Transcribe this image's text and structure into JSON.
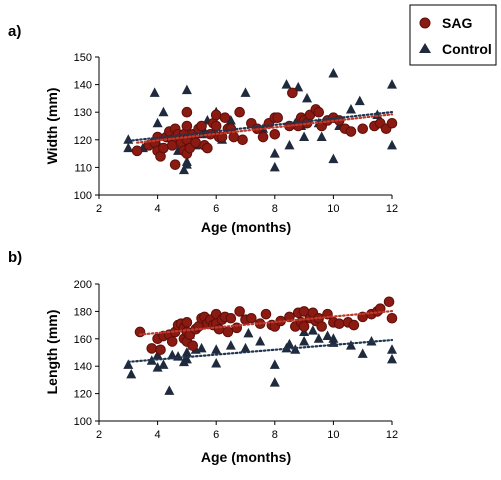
{
  "legend": {
    "items": [
      {
        "label": "SAG",
        "marker": "circle",
        "color": "#8b1a12"
      },
      {
        "label": "Control",
        "marker": "triangle",
        "color": "#1f2a3c"
      }
    ]
  },
  "colors": {
    "sag": "#8b1a12",
    "sag_stroke": "#5e0f0a",
    "control": "#1f2a3c",
    "sag_trend": "#c0392b",
    "control_trend": "#1f3550"
  },
  "chart_data": [
    {
      "panel_label": "a)",
      "type": "scatter",
      "xlabel": "Age (months)",
      "ylabel": "Width (mm)",
      "xlim": [
        2,
        12
      ],
      "ylim": [
        100,
        150
      ],
      "xticks": [
        2,
        4,
        6,
        8,
        10,
        12
      ],
      "yticks": [
        100,
        110,
        120,
        130,
        140,
        150
      ],
      "trendline": "dotted linear fit per series",
      "series": [
        {
          "name": "SAG",
          "marker": "circle",
          "points": [
            [
              3.3,
              116
            ],
            [
              3.7,
              118
            ],
            [
              3.9,
              119
            ],
            [
              4.0,
              121
            ],
            [
              4.0,
              116
            ],
            [
              4.1,
              114
            ],
            [
              4.2,
              117
            ],
            [
              4.3,
              121
            ],
            [
              4.4,
              123
            ],
            [
              4.5,
              120
            ],
            [
              4.5,
              118
            ],
            [
              4.6,
              124
            ],
            [
              4.6,
              111
            ],
            [
              4.7,
              122
            ],
            [
              4.8,
              119
            ],
            [
              4.9,
              122
            ],
            [
              4.9,
              116
            ],
            [
              5.0,
              125
            ],
            [
              5.0,
              120
            ],
            [
              5.0,
              130
            ],
            [
              5.0,
              115
            ],
            [
              5.1,
              117
            ],
            [
              5.2,
              122
            ],
            [
              5.3,
              119
            ],
            [
              5.4,
              124
            ],
            [
              5.5,
              125
            ],
            [
              5.6,
              118
            ],
            [
              5.7,
              117
            ],
            [
              5.8,
              122
            ],
            [
              5.9,
              126
            ],
            [
              6.0,
              129
            ],
            [
              6.0,
              125
            ],
            [
              6.1,
              121
            ],
            [
              6.2,
              121
            ],
            [
              6.3,
              128
            ],
            [
              6.4,
              124
            ],
            [
              6.5,
              124
            ],
            [
              6.6,
              121
            ],
            [
              6.8,
              130
            ],
            [
              6.9,
              120
            ],
            [
              7.2,
              126
            ],
            [
              7.4,
              124
            ],
            [
              7.6,
              121
            ],
            [
              7.8,
              126
            ],
            [
              8.0,
              128
            ],
            [
              8.0,
              122
            ],
            [
              8.1,
              128
            ],
            [
              8.5,
              125
            ],
            [
              8.6,
              137
            ],
            [
              8.8,
              125
            ],
            [
              8.9,
              128
            ],
            [
              9.0,
              127
            ],
            [
              9.1,
              126
            ],
            [
              9.2,
              129
            ],
            [
              9.4,
              131
            ],
            [
              9.5,
              130
            ],
            [
              9.6,
              125
            ],
            [
              9.8,
              127
            ],
            [
              10.0,
              128
            ],
            [
              10.2,
              127
            ],
            [
              10.4,
              124
            ],
            [
              10.6,
              123
            ],
            [
              11.0,
              124
            ],
            [
              11.4,
              125
            ],
            [
              11.6,
              126
            ],
            [
              11.8,
              124
            ],
            [
              12.0,
              126
            ]
          ]
        },
        {
          "name": "Control",
          "marker": "triangle",
          "points": [
            [
              3.0,
              120
            ],
            [
              3.0,
              117
            ],
            [
              3.5,
              117
            ],
            [
              3.8,
              119
            ],
            [
              3.9,
              137
            ],
            [
              4.0,
              126
            ],
            [
              4.0,
              119
            ],
            [
              4.2,
              130
            ],
            [
              4.5,
              122
            ],
            [
              4.6,
              120
            ],
            [
              4.7,
              116
            ],
            [
              4.9,
              109
            ],
            [
              5.0,
              138
            ],
            [
              5.0,
              112
            ],
            [
              5.0,
              111
            ],
            [
              5.0,
              118
            ],
            [
              5.0,
              120
            ],
            [
              5.2,
              121
            ],
            [
              5.3,
              118
            ],
            [
              5.5,
              122
            ],
            [
              5.6,
              123
            ],
            [
              5.7,
              127
            ],
            [
              5.9,
              123
            ],
            [
              6.0,
              130
            ],
            [
              6.2,
              120
            ],
            [
              6.5,
              127
            ],
            [
              7.0,
              137
            ],
            [
              7.6,
              124
            ],
            [
              8.0,
              115
            ],
            [
              8.0,
              110
            ],
            [
              8.4,
              140
            ],
            [
              8.5,
              118
            ],
            [
              8.7,
              126
            ],
            [
              8.8,
              139
            ],
            [
              8.9,
              125
            ],
            [
              9.0,
              121
            ],
            [
              9.1,
              135
            ],
            [
              9.5,
              126
            ],
            [
              9.6,
              121
            ],
            [
              10.0,
              144
            ],
            [
              10.0,
              113
            ],
            [
              10.2,
              125
            ],
            [
              10.6,
              131
            ],
            [
              10.9,
              134
            ],
            [
              11.5,
              129
            ],
            [
              12.0,
              140
            ],
            [
              12.0,
              118
            ]
          ]
        }
      ]
    },
    {
      "panel_label": "b)",
      "type": "scatter",
      "xlabel": "Age (months)",
      "ylabel": "Length (mm)",
      "xlim": [
        2,
        12
      ],
      "ylim": [
        100,
        200
      ],
      "xticks": [
        2,
        4,
        6,
        8,
        10,
        12
      ],
      "yticks": [
        100,
        120,
        140,
        160,
        180,
        200
      ],
      "trendline": "dotted linear fit per series",
      "series": [
        {
          "name": "SAG",
          "marker": "circle",
          "points": [
            [
              3.4,
              165
            ],
            [
              3.8,
              153
            ],
            [
              4.0,
              160
            ],
            [
              4.1,
              152
            ],
            [
              4.2,
              162
            ],
            [
              4.4,
              163
            ],
            [
              4.5,
              158
            ],
            [
              4.6,
              165
            ],
            [
              4.7,
              170
            ],
            [
              4.8,
              171
            ],
            [
              4.9,
              168
            ],
            [
              4.9,
              160
            ],
            [
              5.0,
              172
            ],
            [
              5.0,
              165
            ],
            [
              5.0,
              158
            ],
            [
              5.1,
              163
            ],
            [
              5.2,
              155
            ],
            [
              5.3,
              167
            ],
            [
              5.4,
              169
            ],
            [
              5.5,
              175
            ],
            [
              5.6,
              176
            ],
            [
              5.7,
              171
            ],
            [
              5.8,
              174
            ],
            [
              5.9,
              170
            ],
            [
              6.0,
              178
            ],
            [
              6.0,
              171
            ],
            [
              6.1,
              167
            ],
            [
              6.2,
              174
            ],
            [
              6.3,
              176
            ],
            [
              6.4,
              165
            ],
            [
              6.5,
              175
            ],
            [
              6.7,
              168
            ],
            [
              6.8,
              180
            ],
            [
              7.0,
              174
            ],
            [
              7.2,
              175
            ],
            [
              7.5,
              171
            ],
            [
              7.7,
              178
            ],
            [
              7.9,
              170
            ],
            [
              8.0,
              169
            ],
            [
              8.2,
              173
            ],
            [
              8.5,
              176
            ],
            [
              8.7,
              169
            ],
            [
              8.8,
              179
            ],
            [
              8.9,
              172
            ],
            [
              9.0,
              180
            ],
            [
              9.0,
              169
            ],
            [
              9.2,
              175
            ],
            [
              9.3,
              179
            ],
            [
              9.4,
              173
            ],
            [
              9.5,
              175
            ],
            [
              9.6,
              169
            ],
            [
              9.8,
              178
            ],
            [
              10.0,
              172
            ],
            [
              10.2,
              171
            ],
            [
              10.5,
              172
            ],
            [
              10.7,
              170
            ],
            [
              11.0,
              176
            ],
            [
              11.3,
              178
            ],
            [
              11.5,
              180
            ],
            [
              11.6,
              182
            ],
            [
              11.9,
              187
            ],
            [
              12.0,
              175
            ]
          ]
        },
        {
          "name": "Control",
          "marker": "triangle",
          "points": [
            [
              3.0,
              141
            ],
            [
              3.1,
              134
            ],
            [
              3.8,
              144
            ],
            [
              4.0,
              148
            ],
            [
              4.0,
              139
            ],
            [
              4.2,
              141
            ],
            [
              4.4,
              122
            ],
            [
              4.5,
              148
            ],
            [
              4.7,
              147
            ],
            [
              4.9,
              143
            ],
            [
              5.0,
              150
            ],
            [
              5.0,
              145
            ],
            [
              5.1,
              163
            ],
            [
              5.2,
              155
            ],
            [
              5.3,
              152
            ],
            [
              5.5,
              153
            ],
            [
              6.0,
              152
            ],
            [
              6.0,
              142
            ],
            [
              6.5,
              155
            ],
            [
              7.0,
              153
            ],
            [
              7.1,
              164
            ],
            [
              7.5,
              158
            ],
            [
              8.0,
              141
            ],
            [
              8.0,
              128
            ],
            [
              8.4,
              153
            ],
            [
              8.5,
              156
            ],
            [
              8.7,
              152
            ],
            [
              9.0,
              165
            ],
            [
              9.0,
              158
            ],
            [
              9.3,
              166
            ],
            [
              9.5,
              160
            ],
            [
              9.8,
              162
            ],
            [
              10.0,
              160
            ],
            [
              10.0,
              157
            ],
            [
              10.6,
              155
            ],
            [
              11.0,
              149
            ],
            [
              11.3,
              158
            ],
            [
              12.0,
              152
            ],
            [
              12.0,
              145
            ]
          ]
        }
      ]
    }
  ]
}
